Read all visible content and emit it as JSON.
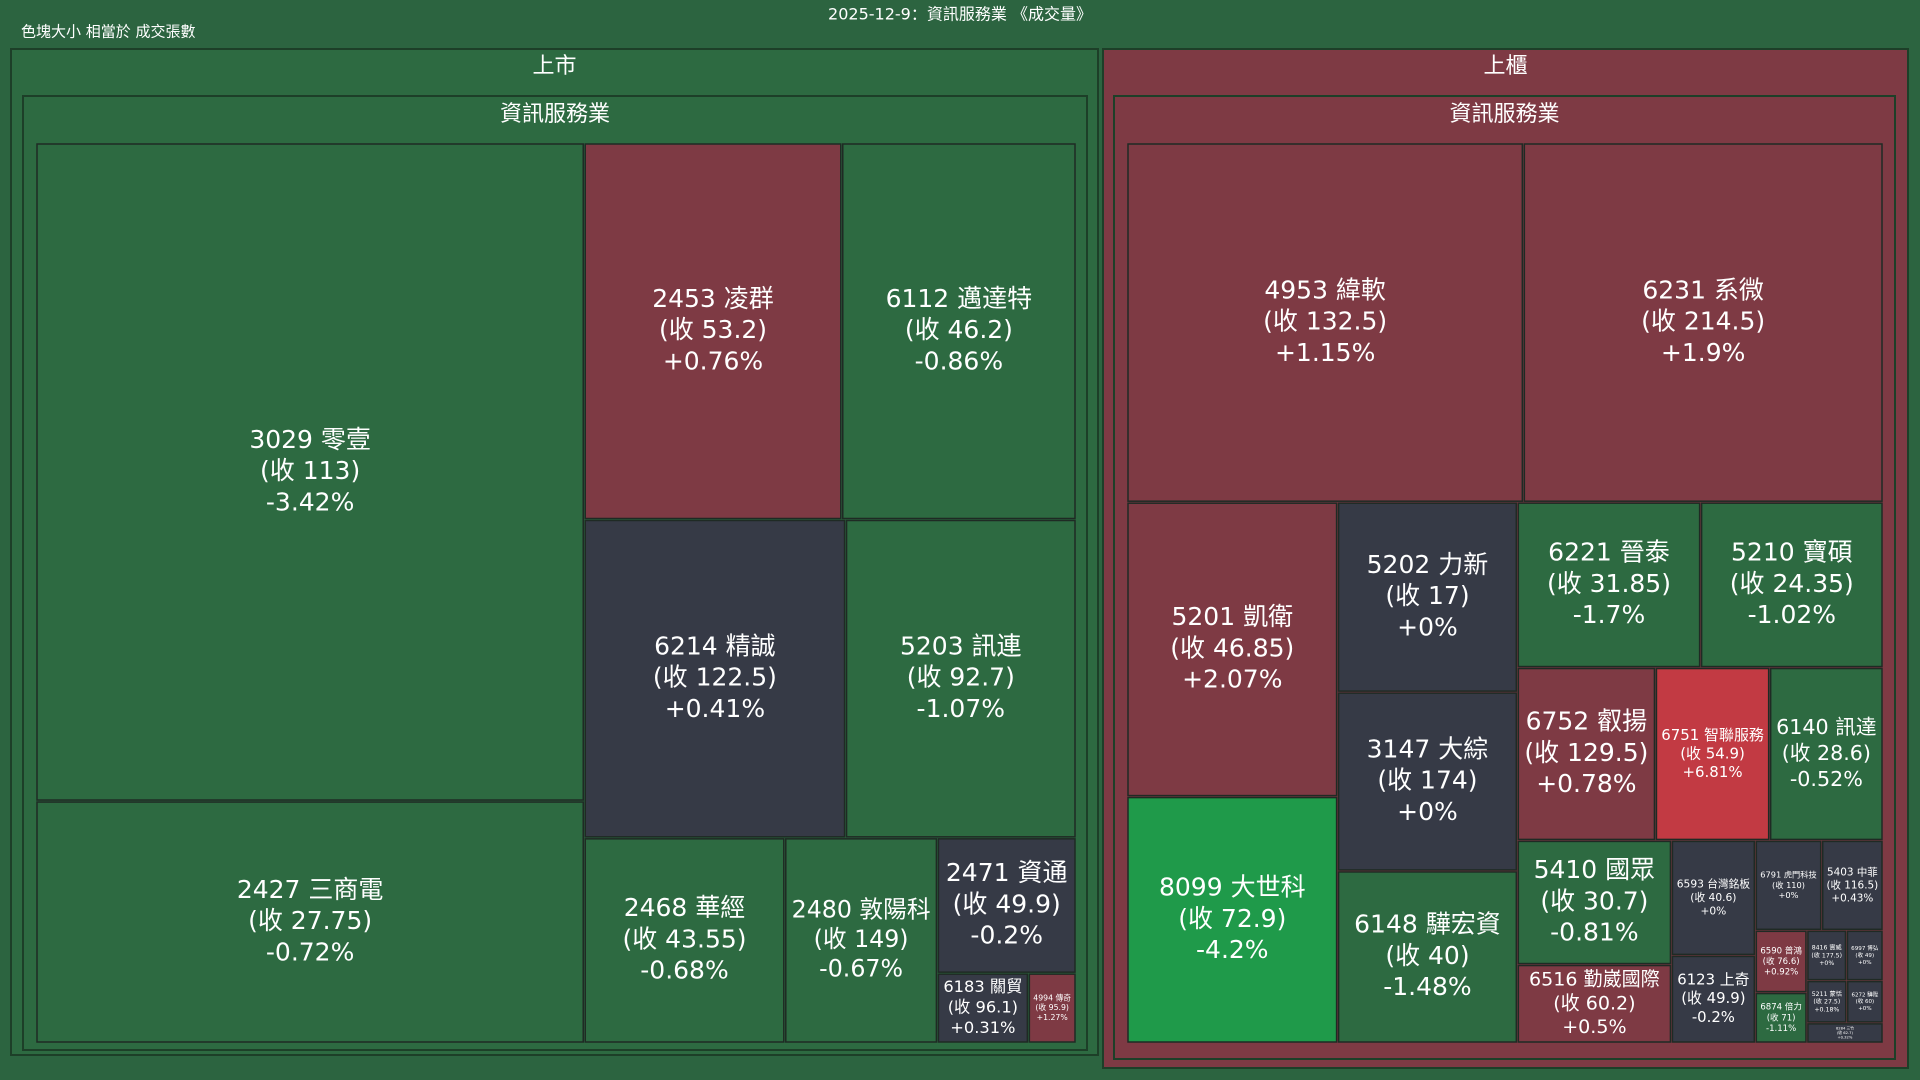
{
  "chart_data": {
    "type": "treemap",
    "title": "2025-12-9：資訊服務業 《成交量》",
    "subtitle": "色塊大小 相當於 成交張數",
    "colors": {
      "up": "#7e3a44",
      "down": "#2d6a41",
      "flat": "#363a46"
    },
    "groups": [
      {
        "name": "上市",
        "color": "#2d6a41",
        "children": [
          {
            "name": "資訊服務業",
            "tiles": [
              {
                "label": "3029 零壹",
                "close_label": "(收 113)",
                "change": -3.42,
                "change_label": "-3.42%",
                "value": 2385
              },
              {
                "label": "2427 三商電",
                "close_label": "(收 27.75)",
                "change": -0.72,
                "change_label": "-0.72%",
                "value": 877
              },
              {
                "label": "2453 凌群",
                "close_label": "(收 53.2)",
                "change": 0.76,
                "change_label": "+0.76%",
                "value": 641
              },
              {
                "label": "6112 邁達特",
                "close_label": "(收 46.2)",
                "change": -0.86,
                "change_label": "-0.86%",
                "value": 583
              },
              {
                "label": "6214 精誠",
                "close_label": "(收 122.5)",
                "change": 0.41,
                "change_label": "+0.41%",
                "value": 550,
                "color": "#363a46"
              },
              {
                "label": "5203 訊連",
                "close_label": "(收 92.7)",
                "change": -1.07,
                "change_label": "-1.07%",
                "value": 485
              },
              {
                "label": "2468 華經",
                "close_label": "(收 43.55)",
                "change": -0.68,
                "change_label": "-0.68%",
                "value": 272
              },
              {
                "label": "2480 敦陽科",
                "close_label": "(收 149)",
                "change": -0.67,
                "change_label": "-0.67%",
                "value": 207
              },
              {
                "label": "2471 資通",
                "close_label": "(收 49.9)",
                "change": -0.2,
                "change_label": "-0.2%",
                "value": 124,
                "color": "#363a46"
              },
              {
                "label": "6183 關貿",
                "close_label": "(收 96.1)",
                "change": 0.31,
                "change_label": "+0.31%",
                "value": 42,
                "color": "#363a46"
              },
              {
                "label": "4994 傳奇",
                "close_label": "(收 95.9)",
                "change": 1.27,
                "change_label": "+1.27%",
                "value": 22
              }
            ]
          }
        ]
      },
      {
        "name": "上櫃",
        "color": "#7e3a44",
        "children": [
          {
            "name": "資訊服務業",
            "tiles": [
              {
                "label": "4953 緯軟",
                "close_label": "(收 132.5)",
                "change": 1.15,
                "change_label": "+1.15%",
                "value": 930
              },
              {
                "label": "6231 系微",
                "close_label": "(收 214.5)",
                "change": 1.9,
                "change_label": "+1.9%",
                "value": 844
              },
              {
                "label": "5201 凱衛",
                "close_label": "(收 46.85)",
                "change": 2.07,
                "change_label": "+2.07%",
                "value": 405
              },
              {
                "label": "8099 大世科",
                "close_label": "(收 72.9)",
                "change": -4.2,
                "change_label": "-4.2%",
                "value": 339,
                "color": "#1f9a4a"
              },
              {
                "label": "5202 力新",
                "close_label": "(收 17)",
                "change": 0,
                "change_label": "+0%",
                "value": 223
              },
              {
                "label": "3147 大綜",
                "close_label": "(收 174)",
                "change": 0,
                "change_label": "+0%",
                "value": 210
              },
              {
                "label": "6148 驊宏資",
                "close_label": "(收 40)",
                "change": -1.48,
                "change_label": "-1.48%",
                "value": 202
              },
              {
                "label": "6221 晉泰",
                "close_label": "(收 31.85)",
                "change": -1.7,
                "change_label": "-1.7%",
                "value": 198
              },
              {
                "label": "5210 寶碩",
                "close_label": "(收 24.35)",
                "change": -1.02,
                "change_label": "-1.02%",
                "value": 197
              },
              {
                "label": "6752 叡揚",
                "close_label": "(收 129.5)",
                "change": 0.78,
                "change_label": "+0.78%",
                "value": 156
              },
              {
                "label": "6751 智聯服務",
                "close_label": "(收 54.9)",
                "change": 6.81,
                "change_label": "+6.81%",
                "value": 129,
                "color": "#c23a43"
              },
              {
                "label": "6140 訊達",
                "close_label": "(收 28.6)",
                "change": -0.52,
                "change_label": "-0.52%",
                "value": 128
              },
              {
                "label": "5410 國眾",
                "close_label": "(收 30.7)",
                "change": -0.81,
                "change_label": "-0.81%",
                "value": 125
              },
              {
                "label": "6516 勤崴國際",
                "close_label": "(收 60.2)",
                "change": 0.5,
                "change_label": "+0.5%",
                "value": 79
              },
              {
                "label": "6593 台灣銘板",
                "close_label": "(收 40.6)",
                "change": 0,
                "change_label": "+0%",
                "value": 63
              },
              {
                "label": "6123 上奇",
                "close_label": "(收 49.9)",
                "change": -0.2,
                "change_label": "-0.2%",
                "value": 48,
                "color": "#363a46"
              },
              {
                "label": "6791 虎門科技",
                "close_label": "(收 110)",
                "change": 0,
                "change_label": "+0%",
                "value": 39
              },
              {
                "label": "5403 中菲",
                "close_label": "(收 116.5)",
                "change": 0.43,
                "change_label": "+0.43%",
                "value": 36,
                "color": "#363a46"
              },
              {
                "label": "6590 普鴻",
                "close_label": "(收 76.6)",
                "change": 0.92,
                "change_label": "+0.92%",
                "value": 21
              },
              {
                "label": "6874 倍力",
                "close_label": "(收 71)",
                "change": -1.11,
                "change_label": "-1.11%",
                "value": 17
              },
              {
                "label": "8416 實威",
                "close_label": "(收 177.5)",
                "change": 0,
                "change_label": "+0%",
                "value": 13
              },
              {
                "label": "6997 博弘",
                "close_label": "(收 49)",
                "change": 0,
                "change_label": "+0%",
                "value": 12
              },
              {
                "label": "5211 蒙恬",
                "close_label": "(收 27.5)",
                "change": 0.18,
                "change_label": "+0.18%",
                "value": 11,
                "color": "#363a46"
              },
              {
                "label": "6272 驊陞",
                "close_label": "(收 60)",
                "change": 0,
                "change_label": "+0%",
                "value": 10
              },
              {
                "label": "8284 三竹",
                "close_label": "(收 62.7)",
                "change": 0.32,
                "change_label": "+0.32%",
                "value": 10,
                "color": "#363a46"
              }
            ]
          }
        ]
      }
    ]
  }
}
